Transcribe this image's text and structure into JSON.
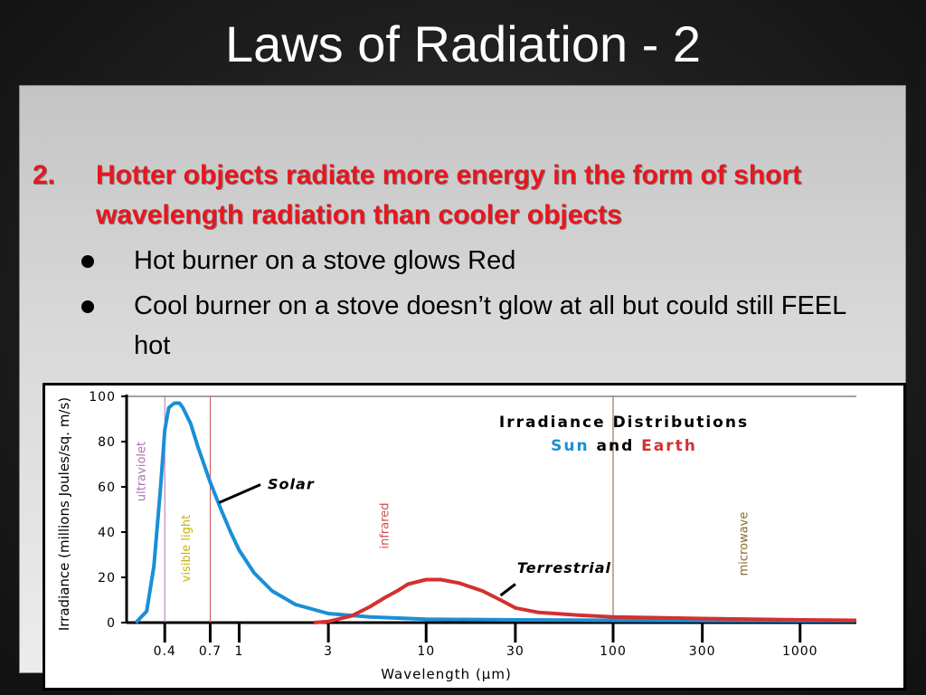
{
  "slide": {
    "title": "Laws of Radiation - 2",
    "point_number": "2.",
    "point_text": "Hotter objects radiate more energy in the form of short wavelength radiation than cooler objects",
    "bullets": [
      "Hot burner on a stove glows Red",
      "Cool burner on a stove doesn’t glow at all but could still FEEL hot"
    ]
  },
  "colors": {
    "title": "#ffffff",
    "point": "#e8161f",
    "sun": "#1a8fd6",
    "earth": "#d43030",
    "ultraviolet": "#b070b0",
    "visible": "#c8b400",
    "infrared": "#d05050",
    "microwave": "#8a6a2a"
  },
  "chart_data": {
    "type": "line",
    "title": "Irradiance Distributions",
    "subtitle_parts": [
      "Sun",
      "and",
      "Earth"
    ],
    "xlabel": "Wavelength (µm)",
    "ylabel": "Irradiance (millions Joules/sq. m/s)",
    "x_scale": "log",
    "xlim": [
      0.25,
      2000
    ],
    "ylim": [
      0,
      100
    ],
    "x_ticks": [
      0.4,
      0.7,
      1,
      3,
      10,
      30,
      100,
      300,
      1000
    ],
    "x_tick_labels": [
      "0.4",
      "0.7",
      "1",
      "3",
      "10",
      "30",
      "100",
      "300",
      "1000"
    ],
    "y_ticks": [
      0,
      20,
      40,
      60,
      80,
      100
    ],
    "y_tick_labels": [
      "0",
      "20",
      "40",
      "60",
      "80",
      "100"
    ],
    "region_labels": [
      {
        "text": "ultraviolet",
        "x": 0.3
      },
      {
        "text": "visible light",
        "x": 0.52
      },
      {
        "text": "infrared",
        "x": 6
      },
      {
        "text": "microwave",
        "x": 500
      }
    ],
    "boundary_lines": [
      0.4,
      0.7,
      100
    ],
    "series": [
      {
        "name": "Solar",
        "x": [
          0.28,
          0.32,
          0.35,
          0.38,
          0.4,
          0.42,
          0.45,
          0.48,
          0.5,
          0.55,
          0.6,
          0.7,
          0.8,
          0.9,
          1,
          1.2,
          1.5,
          2,
          3,
          5,
          10,
          30,
          100,
          1000,
          2000
        ],
        "y": [
          0,
          5,
          25,
          60,
          85,
          95,
          97,
          97,
          95,
          88,
          78,
          62,
          50,
          40,
          32,
          22,
          14,
          8,
          4,
          2.5,
          1.5,
          1.2,
          1,
          0.8,
          0.8
        ]
      },
      {
        "name": "Terrestrial",
        "x": [
          2.5,
          3,
          4,
          5,
          6,
          7,
          8,
          10,
          12,
          15,
          20,
          25,
          30,
          40,
          60,
          100,
          300,
          1000,
          2000
        ],
        "y": [
          0,
          0.5,
          3,
          7,
          11,
          14,
          17,
          19,
          19,
          17.5,
          14,
          10,
          6.5,
          4.5,
          3.5,
          2.5,
          1.8,
          1.2,
          1
        ]
      }
    ]
  }
}
